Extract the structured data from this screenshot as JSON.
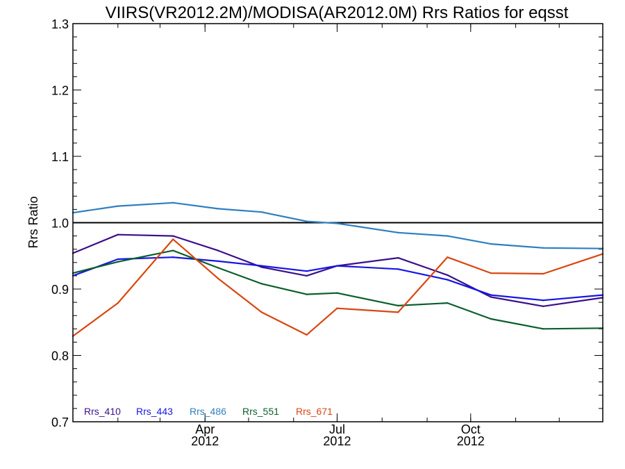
{
  "chart_data": {
    "type": "line",
    "title": "VIIRS(VR2012.2M)/MODISA(AR2012.0M)  Rrs Ratios for eqsst",
    "xlabel": "",
    "ylabel": "Rrs Ratio",
    "xlim": [
      "2012-01-01",
      "2012-12-31"
    ],
    "ylim": [
      0.7,
      1.3
    ],
    "y_ticks": [
      0.7,
      0.8,
      0.9,
      1.0,
      1.1,
      1.2,
      1.3
    ],
    "y_tick_labels": [
      "0.7",
      "0.8",
      "0.9",
      "1.0",
      "1.1",
      "1.2",
      "1.3"
    ],
    "x_ticks": [
      {
        "date": "2012-04-01",
        "label": "Apr",
        "sublabel": "2012"
      },
      {
        "date": "2012-07-01",
        "label": "Jul",
        "sublabel": "2012"
      },
      {
        "date": "2012-10-01",
        "label": "Oct",
        "sublabel": "2012"
      }
    ],
    "reference_line": 1.0,
    "legend_position": "bottom-left",
    "x": [
      "2012-01-01",
      "2012-02-01",
      "2012-03-10",
      "2012-04-10",
      "2012-05-10",
      "2012-06-10",
      "2012-07-01",
      "2012-08-12",
      "2012-09-15",
      "2012-10-15",
      "2012-11-20",
      "2012-12-31"
    ],
    "series": [
      {
        "name": "Rrs_410",
        "color": "#3b0f8c",
        "values": [
          0.954,
          0.982,
          0.98,
          0.958,
          0.933,
          0.92,
          0.935,
          0.947,
          0.921,
          0.888,
          0.874,
          0.887
        ]
      },
      {
        "name": "Rrs_443",
        "color": "#1515e6",
        "values": [
          0.92,
          0.945,
          0.948,
          0.942,
          0.935,
          0.927,
          0.935,
          0.93,
          0.914,
          0.891,
          0.883,
          0.891
        ]
      },
      {
        "name": "Rrs_486",
        "color": "#2c7fc0",
        "values": [
          1.015,
          1.025,
          1.03,
          1.021,
          1.016,
          1.002,
          0.999,
          0.985,
          0.98,
          0.968,
          0.962,
          0.961
        ]
      },
      {
        "name": "Rrs_551",
        "color": "#0a5e2c",
        "values": [
          0.924,
          0.941,
          0.958,
          0.932,
          0.908,
          0.892,
          0.894,
          0.875,
          0.879,
          0.855,
          0.84,
          0.841
        ]
      },
      {
        "name": "Rrs_671",
        "color": "#d9460f",
        "values": [
          0.829,
          0.879,
          0.975,
          0.916,
          0.865,
          0.831,
          0.871,
          0.865,
          0.948,
          0.924,
          0.923,
          0.953
        ]
      }
    ]
  }
}
